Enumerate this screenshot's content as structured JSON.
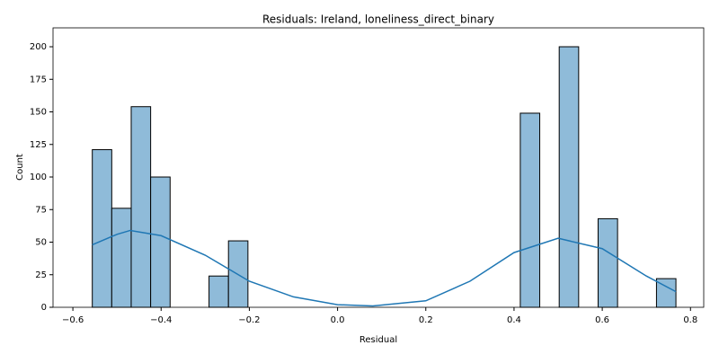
{
  "chart_data": {
    "type": "histogram",
    "title": "Residuals: Ireland, loneliness_direct_binary",
    "x_label": "Residual",
    "y_label": "Count",
    "bins": [
      -0.556,
      -0.5119,
      -0.4678,
      -0.4237,
      -0.3796,
      -0.3355,
      -0.2914,
      -0.2473,
      -0.2032,
      -0.1591,
      -0.115,
      -0.0709,
      -0.0268,
      0.0173,
      0.0614,
      0.1055,
      0.1496,
      0.1937,
      0.2378,
      0.2819,
      0.326,
      0.3701,
      0.4142,
      0.4583,
      0.5024,
      0.5465,
      0.5906,
      0.6347,
      0.6788,
      0.7229,
      0.767
    ],
    "values": [
      121,
      76,
      154,
      100,
      0,
      0,
      24,
      51,
      0,
      0,
      0,
      0,
      0,
      0,
      0,
      0,
      0,
      0,
      0,
      0,
      0,
      0,
      149,
      0,
      200,
      0,
      68,
      0,
      0,
      22
    ],
    "color": "#8fbbd9",
    "edge_color": "#000000",
    "kde": {
      "x": [
        -0.556,
        -0.5,
        -0.47,
        -0.4,
        -0.3,
        -0.2,
        -0.1,
        0.0,
        0.08,
        0.2,
        0.3,
        0.4,
        0.5,
        0.6,
        0.7,
        0.767
      ],
      "values": [
        48,
        56,
        59,
        55,
        40,
        20,
        8,
        2,
        1,
        5,
        20,
        42,
        53,
        45,
        24,
        12
      ],
      "color": "#1f77b4"
    },
    "xlim": [
      -0.645,
      0.83
    ],
    "ylim": [
      0,
      214.5
    ],
    "xticks": [
      {
        "value": -0.6,
        "label": "−0.6"
      },
      {
        "value": -0.4,
        "label": "−0.4"
      },
      {
        "value": -0.2,
        "label": "−0.2"
      },
      {
        "value": 0,
        "label": "0.0"
      },
      0.2,
      0.4,
      0.6,
      0.8
    ],
    "yticks": [
      0,
      25,
      50,
      75,
      100,
      125,
      150,
      175,
      200
    ]
  }
}
